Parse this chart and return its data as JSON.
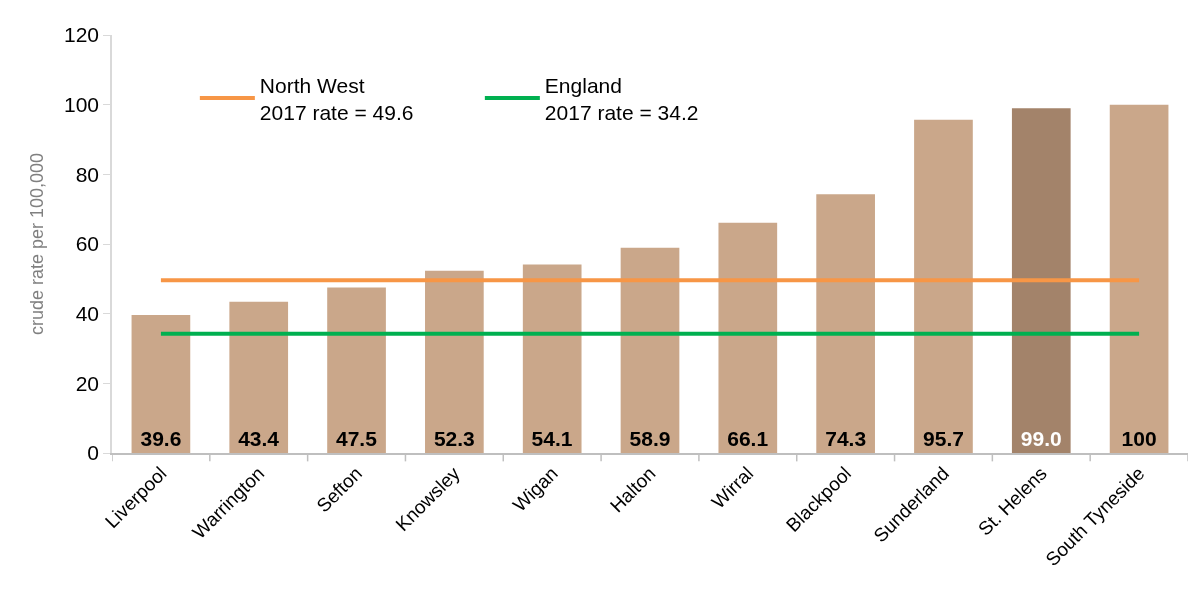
{
  "chart_data": {
    "type": "bar",
    "ylabel": "crude rate per 100,000",
    "categories": [
      "Liverpool",
      "Warrington",
      "Sefton",
      "Knowsley",
      "Wigan",
      "Halton",
      "Wirral",
      "Blackpool",
      "Sunderland",
      "St. Helens",
      "South Tyneside"
    ],
    "series": [
      {
        "colors": [
          "#caa78a",
          "#caa78a",
          "#caa78a",
          "#caa78a",
          "#caa78a",
          "#caa78a",
          "#caa78a",
          "#caa78a",
          "#caa78a",
          "#a3836a",
          "#caa78a"
        ],
        "values": [
          39.6,
          43.4,
          47.5,
          52.3,
          54.1,
          58.9,
          66.1,
          74.3,
          95.7,
          99.0,
          100
        ],
        "value_labels": [
          "39.6",
          "43.4",
          "47.5",
          "52.3",
          "54.1",
          "58.9",
          "66.1",
          "74.3",
          "95.7",
          "99.0",
          "100"
        ]
      },
      {
        "type": "line",
        "name": "North West\n2017 rate = 49.6",
        "color": "#f79646",
        "values": [
          49.6,
          49.6,
          49.6,
          49.6,
          49.6,
          49.6,
          49.6,
          49.6,
          49.6,
          49.6,
          49.6
        ]
      },
      {
        "type": "line",
        "name": "England\n2017 rate = 34.2",
        "color": "#00b050",
        "values": [
          34.2,
          34.2,
          34.2,
          34.2,
          34.2,
          34.2,
          34.2,
          34.2,
          34.2,
          34.2,
          34.2
        ]
      }
    ],
    "ylim": [
      0,
      120
    ],
    "yticks": [
      0,
      20,
      40,
      60,
      80,
      100,
      120
    ],
    "legend": "top left",
    "line_style": "solid"
  }
}
